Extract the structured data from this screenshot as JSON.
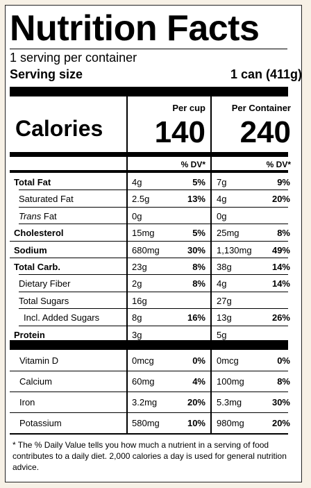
{
  "title": "Nutrition Facts",
  "servings_per_container": "1 serving per container",
  "serving_size_label": "Serving size",
  "serving_size_value": "1 can (411g)",
  "calories_label": "Calories",
  "columns": {
    "per_serving": {
      "header": "Per cup",
      "calories": "140"
    },
    "per_container": {
      "header": "Per Container",
      "calories": "240"
    }
  },
  "dv_header": "% DV*",
  "nutrients": [
    {
      "name": "Total Fat",
      "bold": true,
      "c1_amt": "4g",
      "c1_dv": "5%",
      "c2_amt": "7g",
      "c2_dv": "9%"
    },
    {
      "name": "Saturated Fat",
      "bold": false,
      "indent": 1,
      "c1_amt": "2.5g",
      "c1_dv": "13%",
      "c2_amt": "4g",
      "c2_dv": "20%"
    },
    {
      "name_italic": "Trans",
      "name_rest": " Fat",
      "bold": false,
      "indent": 1,
      "c1_amt": "0g",
      "c1_dv": "",
      "c2_amt": "0g",
      "c2_dv": ""
    },
    {
      "name": "Cholesterol",
      "bold": true,
      "c1_amt": "15mg",
      "c1_dv": "5%",
      "c2_amt": "25mg",
      "c2_dv": "8%"
    },
    {
      "name": "Sodium",
      "bold": true,
      "c1_amt": "680mg",
      "c1_dv": "30%",
      "c2_amt": "1,130mg",
      "c2_dv": "49%"
    },
    {
      "name": "Total Carb.",
      "bold": true,
      "c1_amt": "23g",
      "c1_dv": "8%",
      "c2_amt": "38g",
      "c2_dv": "14%"
    },
    {
      "name": "Dietary Fiber",
      "bold": false,
      "indent": 1,
      "c1_amt": "2g",
      "c1_dv": "8%",
      "c2_amt": "4g",
      "c2_dv": "14%"
    },
    {
      "name": "Total Sugars",
      "bold": false,
      "indent": 1,
      "c1_amt": "16g",
      "c1_dv": "",
      "c2_amt": "27g",
      "c2_dv": ""
    },
    {
      "name": "Incl. Added Sugars",
      "bold": false,
      "indent": 2,
      "c1_amt": "8g",
      "c1_dv": "16%",
      "c2_amt": "13g",
      "c2_dv": "26%"
    },
    {
      "name": "Protein",
      "bold": true,
      "c1_amt": "3g",
      "c1_dv": "",
      "c2_amt": "5g",
      "c2_dv": ""
    }
  ],
  "vitamins": [
    {
      "name": "Vitamin D",
      "c1_amt": "0mcg",
      "c1_dv": "0%",
      "c2_amt": "0mcg",
      "c2_dv": "0%"
    },
    {
      "name": "Calcium",
      "c1_amt": "60mg",
      "c1_dv": "4%",
      "c2_amt": "100mg",
      "c2_dv": "8%"
    },
    {
      "name": "Iron",
      "c1_amt": "3.2mg",
      "c1_dv": "20%",
      "c2_amt": "5.3mg",
      "c2_dv": "30%"
    },
    {
      "name": "Potassium",
      "c1_amt": "580mg",
      "c1_dv": "10%",
      "c2_amt": "980mg",
      "c2_dv": "20%"
    }
  ],
  "footnote": "* The % Daily Value tells you how much a nutrient in a serving of food contributes to a daily diet. 2,000 calories a day is used for general nutrition advice.",
  "colors": {
    "page_background": "#f7f1e6",
    "label_background": "#ffffff",
    "ink": "#000000"
  }
}
